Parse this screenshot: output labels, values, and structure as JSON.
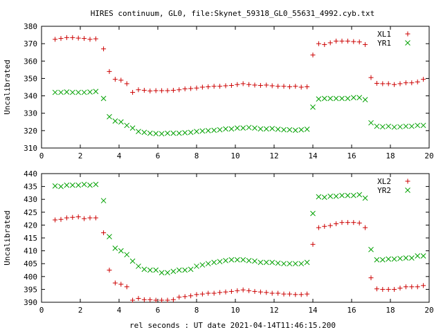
{
  "title": "HIRES continuum, GL0, file:Skynet_59318_GL0_55631_4992.cyb.txt",
  "xlabel": "rel seconds : UT date 2021-04-14T11:46:15.200",
  "chart_data": [
    {
      "type": "scatter",
      "ylabel": "Uncalibrated",
      "xlim": [
        0,
        20
      ],
      "ylim": [
        310,
        380
      ],
      "xticks": [
        0,
        2,
        4,
        6,
        8,
        10,
        12,
        14,
        16,
        18,
        20
      ],
      "yticks": [
        310,
        320,
        330,
        340,
        350,
        360,
        370,
        380
      ],
      "legend_position": "top-right",
      "x": [
        0.7,
        1.0,
        1.3,
        1.6,
        1.9,
        2.2,
        2.5,
        2.8,
        3.2,
        3.5,
        3.8,
        4.1,
        4.4,
        4.7,
        5.0,
        5.3,
        5.6,
        5.9,
        6.2,
        6.5,
        6.8,
        7.1,
        7.4,
        7.7,
        8.0,
        8.3,
        8.6,
        8.9,
        9.2,
        9.5,
        9.8,
        10.1,
        10.4,
        10.7,
        11.0,
        11.3,
        11.6,
        11.9,
        12.2,
        12.5,
        12.8,
        13.1,
        13.4,
        13.7,
        14.0,
        14.3,
        14.6,
        14.9,
        15.2,
        15.5,
        15.8,
        16.1,
        16.4,
        16.7,
        17.0,
        17.3,
        17.6,
        17.9,
        18.2,
        18.5,
        18.8,
        19.1,
        19.4,
        19.7
      ],
      "series": [
        {
          "name": "XL1",
          "marker": "plus",
          "color": "#cc0000",
          "values": [
            372.5,
            373,
            373.5,
            373.5,
            373.2,
            373,
            372.5,
            372.8,
            367,
            354,
            349.5,
            349,
            347,
            342,
            343.5,
            343.2,
            342.8,
            343,
            343,
            343,
            343.2,
            343.5,
            344,
            344.2,
            344.5,
            345,
            345.2,
            345.5,
            345.5,
            345.8,
            346,
            346.5,
            347,
            346.5,
            346.2,
            346,
            346.2,
            345.8,
            345.5,
            345.5,
            345.2,
            345.5,
            345,
            345.2,
            363.5,
            370,
            369.5,
            370.5,
            371.5,
            371.5,
            371.5,
            371.2,
            371,
            369.5,
            350.5,
            347.2,
            347,
            347,
            346.5,
            347,
            347.5,
            347.5,
            348,
            349.5
          ]
        },
        {
          "name": "YR1",
          "marker": "cross",
          "color": "#00a000",
          "values": [
            342,
            342,
            342.2,
            342,
            342,
            342,
            342.2,
            342.5,
            338.5,
            328,
            325.5,
            325,
            323,
            321.5,
            319.5,
            319,
            318.5,
            318.3,
            318.2,
            318.5,
            318.5,
            318.5,
            318.8,
            319,
            319.5,
            319.8,
            320,
            320.2,
            320.5,
            321,
            321,
            321.5,
            321.5,
            321.8,
            321.5,
            321,
            321,
            321.2,
            320.8,
            320.5,
            320.5,
            320.2,
            320.5,
            320.8,
            333.5,
            338.2,
            338.5,
            338.5,
            338.5,
            338.5,
            338.5,
            339,
            339,
            337.8,
            324.5,
            322.5,
            322.2,
            322.5,
            322,
            322.2,
            322.5,
            322.5,
            323,
            323
          ]
        }
      ]
    },
    {
      "type": "scatter",
      "ylabel": "Uncalibrated",
      "xlim": [
        0,
        20
      ],
      "ylim": [
        390,
        440
      ],
      "xticks": [
        0,
        2,
        4,
        6,
        8,
        10,
        12,
        14,
        16,
        18,
        20
      ],
      "yticks": [
        390,
        395,
        400,
        405,
        410,
        415,
        420,
        425,
        430,
        435,
        440
      ],
      "legend_position": "top-right",
      "x": [
        0.7,
        1.0,
        1.3,
        1.6,
        1.9,
        2.2,
        2.5,
        2.8,
        3.2,
        3.5,
        3.8,
        4.1,
        4.4,
        4.7,
        5.0,
        5.3,
        5.6,
        5.9,
        6.2,
        6.5,
        6.8,
        7.1,
        7.4,
        7.7,
        8.0,
        8.3,
        8.6,
        8.9,
        9.2,
        9.5,
        9.8,
        10.1,
        10.4,
        10.7,
        11.0,
        11.3,
        11.6,
        11.9,
        12.2,
        12.5,
        12.8,
        13.1,
        13.4,
        13.7,
        14.0,
        14.3,
        14.6,
        14.9,
        15.2,
        15.5,
        15.8,
        16.1,
        16.4,
        16.7,
        17.0,
        17.3,
        17.6,
        17.9,
        18.2,
        18.5,
        18.8,
        19.1,
        19.4,
        19.7
      ],
      "series": [
        {
          "name": "XL2",
          "marker": "plus",
          "color": "#cc0000",
          "values": [
            422,
            422.2,
            422.8,
            423,
            423.2,
            422.5,
            422.8,
            422.8,
            417,
            402.5,
            397.5,
            397,
            396,
            390.8,
            391.5,
            391,
            391,
            390.8,
            390.8,
            390.8,
            391,
            392,
            392.2,
            392.5,
            393,
            393.2,
            393.5,
            393.5,
            393.8,
            394,
            394.2,
            394.5,
            394.8,
            394.5,
            394.2,
            394,
            393.8,
            393.5,
            393.5,
            393.2,
            393.2,
            393,
            393,
            393.2,
            412.5,
            419,
            419.5,
            419.8,
            420.5,
            421,
            421,
            421,
            420.8,
            419,
            399.5,
            395.2,
            395,
            395,
            395,
            395.5,
            396,
            396,
            396,
            396.5
          ]
        },
        {
          "name": "YR2",
          "marker": "cross",
          "color": "#00a000",
          "values": [
            435.2,
            435,
            435.5,
            435.5,
            435.5,
            435.8,
            435.5,
            435.8,
            429.5,
            415.5,
            411,
            410,
            408.5,
            406,
            404,
            402.8,
            402.5,
            402.5,
            401.5,
            401.5,
            402,
            402.5,
            402.5,
            402.8,
            404,
            404.5,
            405,
            405.5,
            405.8,
            406.2,
            406.5,
            406.5,
            406.5,
            406.2,
            406,
            405.5,
            405.5,
            405.5,
            405.2,
            405,
            405,
            405,
            405,
            405.5,
            424.5,
            431,
            430.8,
            431.2,
            431.2,
            431.5,
            431.5,
            431.5,
            431.8,
            430.5,
            410.5,
            406.5,
            406.5,
            406.8,
            406.8,
            407,
            407.2,
            407.2,
            408,
            408
          ]
        }
      ]
    }
  ]
}
